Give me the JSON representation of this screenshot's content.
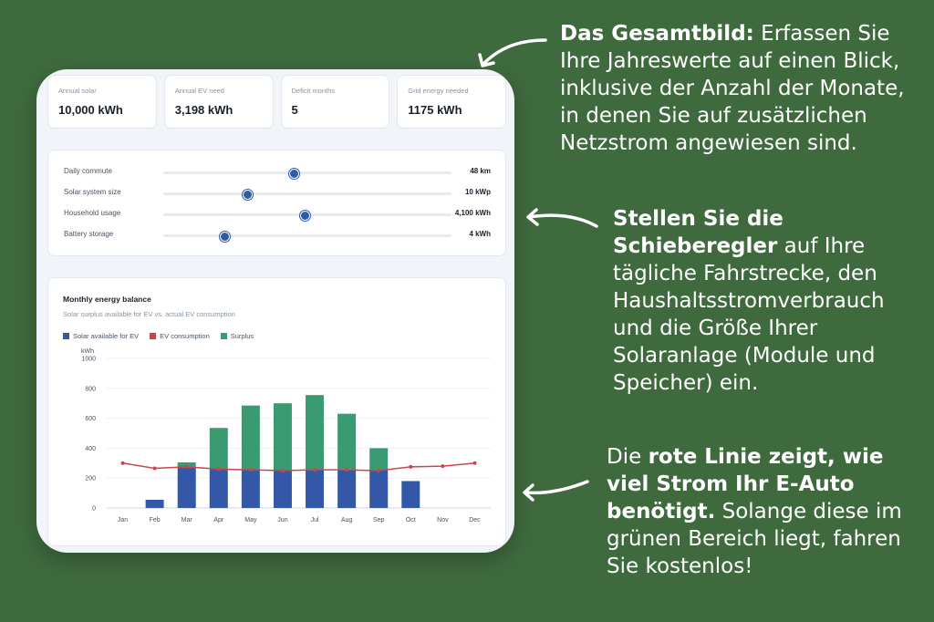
{
  "stats": [
    {
      "label": "Annual solar",
      "value": "10,000 kWh"
    },
    {
      "label": "Annual EV need",
      "value": "3,198 kWh"
    },
    {
      "label": "Deficit months",
      "value": "5"
    },
    {
      "label": "Grid energy needed",
      "value": "1175 kWh"
    }
  ],
  "sliders": [
    {
      "label": "Daily commute",
      "value": "48 km",
      "fraction": 0.45
    },
    {
      "label": "Solar system size",
      "value": "10 kWp",
      "fraction": 0.29
    },
    {
      "label": "Household usage",
      "value": "4,100 kWh",
      "fraction": 0.49
    },
    {
      "label": "Battery storage",
      "value": "4 kWh",
      "fraction": 0.21
    }
  ],
  "chart": {
    "title": "Monthly energy balance",
    "subtitle": "Solar surplus available for EV vs. actual EV consumption",
    "legend": [
      "Solar available for EV",
      "EV consumption",
      "Surplus"
    ]
  },
  "chart_data": {
    "type": "bar",
    "categories": [
      "Jan",
      "Feb",
      "Mar",
      "Apr",
      "May",
      "Jun",
      "Jul",
      "Aug",
      "Sep",
      "Oct",
      "Nov",
      "Dec"
    ],
    "ylabel": "kWh",
    "ylim": [
      0,
      1000
    ],
    "yticks": [
      0,
      200,
      400,
      600,
      800,
      1000
    ],
    "series": [
      {
        "name": "Solar available for EV",
        "kind": "bar",
        "color": "#3458a8",
        "values": [
          0,
          55,
          270,
          265,
          255,
          250,
          255,
          260,
          255,
          180,
          0,
          0
        ]
      },
      {
        "name": "Surplus",
        "kind": "bar-stacked",
        "color": "#3a9a72",
        "values": [
          0,
          0,
          35,
          270,
          430,
          450,
          500,
          370,
          145,
          0,
          0,
          0
        ]
      },
      {
        "name": "EV consumption",
        "kind": "line",
        "color": "#c9454a",
        "values": [
          300,
          265,
          275,
          260,
          255,
          250,
          255,
          255,
          250,
          275,
          280,
          300
        ]
      }
    ],
    "grid": true,
    "legend_position": "top-left"
  },
  "callouts": {
    "c1_bold": "Das Gesamtbild:",
    "c1_text": " Erfassen Sie Ihre Jahreswerte auf einen Blick, inklusive der Anzahl der Monate, in denen Sie auf zusätzlichen Netzstrom angewiesen sind.",
    "c2_bold": "Stellen Sie die Schieberegler",
    "c2_text": " auf Ihre tägliche Fahrstrecke, den Haushaltsstromverbrauch und die Größe Ihrer Solaranlage (Module und Speicher) ein.",
    "c3_pre": "Die ",
    "c3_bold": "rote Linie zeigt, wie viel Strom Ihr E-Auto benötigt.",
    "c3_text": " Solange diese im grünen Bereich liegt, fahren Sie kostenlos!"
  },
  "colors": {
    "background": "#3f6a3e",
    "bar_blue": "#3458a8",
    "bar_green": "#3a9a72",
    "line_red": "#c9454a"
  }
}
